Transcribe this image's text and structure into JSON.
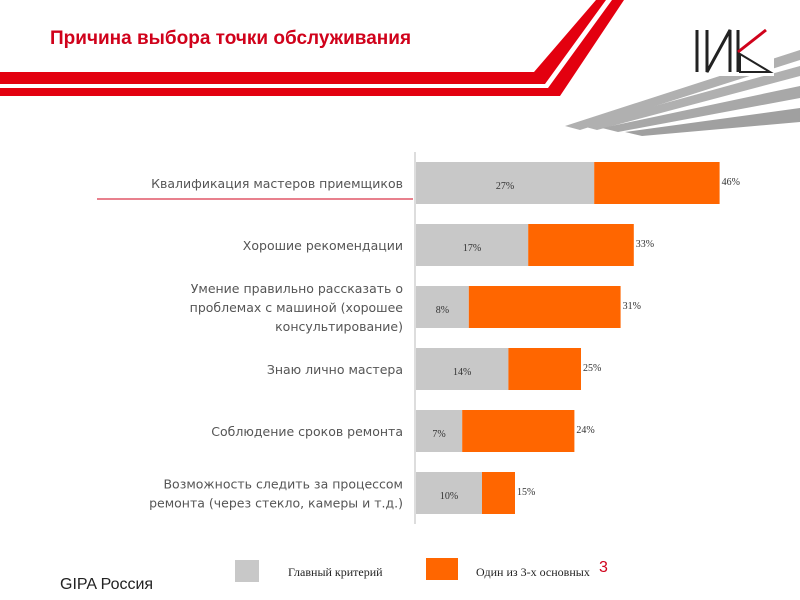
{
  "header": {
    "title": "Причина выбора точки обслуживания"
  },
  "footer": {
    "org": "GIPA Россия",
    "page_number": "3"
  },
  "colors": {
    "main_criterion": "#c8c8c8",
    "one_of_three": "#ff6600",
    "accent_red": "#e3000f"
  },
  "chart_data": {
    "type": "bar",
    "orientation": "horizontal",
    "stacked": true,
    "categories": [
      [
        "Квалификация мастеров приемщиков"
      ],
      [
        "Хорошие  рекомендации"
      ],
      [
        "Умение правильно рассказать о",
        "проблемах с машиной (хорошее",
        "консультирование)"
      ],
      [
        "Знаю  лично мастера"
      ],
      [
        "Соблюдение сроков ремонта"
      ],
      [
        "Возможность следить за процессом",
        "ремонта (через стекло, камеры и т.д.)"
      ]
    ],
    "series": [
      {
        "name": "Главный критерий",
        "values": [
          27,
          17,
          8,
          14,
          7,
          10
        ],
        "labels": [
          "27%",
          "17%",
          "8%",
          "14%",
          "7%",
          "10%"
        ]
      },
      {
        "name": "Один из 3-х основных",
        "values": [
          46,
          33,
          31,
          25,
          24,
          15
        ],
        "labels": [
          "46%",
          "33%",
          "31%",
          "25%",
          "24%",
          "15%"
        ]
      }
    ],
    "legend": {
      "position": "bottom",
      "items": [
        "Главный критерий",
        "Один из 3-х основных"
      ]
    }
  }
}
